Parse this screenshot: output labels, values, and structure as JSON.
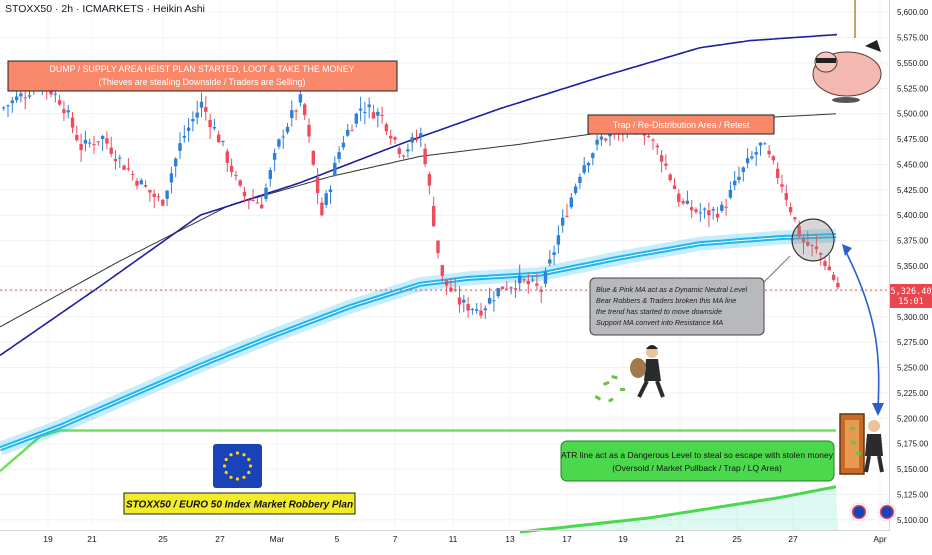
{
  "header": {
    "symbol_line": "STOXX50 · 2h · ICMARKETS · Heikin Ashi"
  },
  "colors": {
    "bull": "#2e7fd6",
    "bear": "#ef4b5c",
    "slow_ma": "#1e1e9e",
    "fast_ma": "#333333",
    "neutral_band": "#1fb6f0",
    "atr_line": "#6ee05a",
    "price_tag": "#e8474f",
    "annotation_orange": "#f9886a",
    "annotation_green": "#4cd84c",
    "annotation_gray": "#b7b9bd"
  },
  "annotations": {
    "dump_title": "DUMP / SUPPLY AREA HEIST PLAN STARTED, LOOT & TAKE THE MONEY",
    "dump_subtitle": "(Thieves are stealing Downside / Traders are Selling)",
    "trap_label": "Trap / Re-Distribution Area / Retest",
    "ma_note": [
      "Blue & Pink MA act as a Dynamic Neutral Level",
      "Bear Robbers & Traders broken this MA line",
      "the trend has started to move downside",
      "Support MA convert into Resistance MA"
    ],
    "atr_note_line1": "ATR line act as a Dangerous Level to steal so escape with stolen money",
    "atr_note_line2": "(Oversold / Market Pullback / Trap / LQ Area)",
    "plan_label": "STOXX50 / EURO 50 Index Market Robbery Plan"
  },
  "price_tag": {
    "price": "5,326.40",
    "countdown": "15:01"
  },
  "chart_data": {
    "type": "candlestick",
    "style": "Heikin Ashi",
    "symbol": "STOXX50",
    "interval": "2h",
    "exchange": "ICMARKETS",
    "y_axis": {
      "side": "right",
      "range": [
        5090,
        5612
      ],
      "ticks": [
        5600,
        5575,
        5550,
        5525,
        5500,
        5475,
        5450,
        5425,
        5400,
        5375,
        5350,
        5325,
        5300,
        5275,
        5250,
        5225,
        5200,
        5175,
        5150,
        5125,
        5100
      ],
      "tick_labels": [
        "5,600.00",
        "5,575.00",
        "5,550.00",
        "5,525.00",
        "5,500.00",
        "5,475.00",
        "5,450.00",
        "5,425.00",
        "5,400.00",
        "5,375.00",
        "5,350.00",
        "5,325.00",
        "5,300.00",
        "5,275.00",
        "5,250.00",
        "5,225.00",
        "5,200.00",
        "5,175.00",
        "5,150.00",
        "5,125.00",
        "5,100.00"
      ]
    },
    "x_axis": {
      "ticks": [
        "19",
        "21",
        "25",
        "27",
        "Mar",
        "5",
        "7",
        "11",
        "13",
        "17",
        "19",
        "21",
        "25",
        "27",
        "Apr"
      ]
    },
    "last_price": 5326.4,
    "price_path": [
      [
        0,
        5505
      ],
      [
        20,
        5518
      ],
      [
        40,
        5532
      ],
      [
        60,
        5512
      ],
      [
        80,
        5466
      ],
      [
        100,
        5478
      ],
      [
        120,
        5452
      ],
      [
        140,
        5430
      ],
      [
        160,
        5412
      ],
      [
        180,
        5474
      ],
      [
        200,
        5510
      ],
      [
        220,
        5470
      ],
      [
        240,
        5420
      ],
      [
        260,
        5412
      ],
      [
        280,
        5480
      ],
      [
        300,
        5515
      ],
      [
        320,
        5400
      ],
      [
        340,
        5472
      ],
      [
        360,
        5508
      ],
      [
        380,
        5498
      ],
      [
        400,
        5462
      ],
      [
        420,
        5480
      ],
      [
        440,
        5338
      ],
      [
        460,
        5312
      ],
      [
        480,
        5308
      ],
      [
        500,
        5330
      ],
      [
        520,
        5335
      ],
      [
        540,
        5326
      ],
      [
        560,
        5390
      ],
      [
        580,
        5448
      ],
      [
        600,
        5476
      ],
      [
        620,
        5482
      ],
      [
        640,
        5488
      ],
      [
        660,
        5458
      ],
      [
        680,
        5410
      ],
      [
        700,
        5402
      ],
      [
        720,
        5405
      ],
      [
        740,
        5442
      ],
      [
        760,
        5470
      ],
      [
        780,
        5432
      ],
      [
        800,
        5375
      ],
      [
        820,
        5360
      ],
      [
        838,
        5326
      ]
    ],
    "indicators": [
      {
        "id": "slow-ma",
        "points": [
          [
            0,
            5262
          ],
          [
            100,
            5330
          ],
          [
            200,
            5400
          ],
          [
            300,
            5432
          ],
          [
            400,
            5470
          ],
          [
            500,
            5505
          ],
          [
            600,
            5536
          ],
          [
            700,
            5565
          ],
          [
            750,
            5572
          ],
          [
            838,
            5578
          ]
        ]
      },
      {
        "id": "fast-ma",
        "points": [
          [
            0,
            5290
          ],
          [
            120,
            5355
          ],
          [
            230,
            5410
          ],
          [
            330,
            5438
          ],
          [
            420,
            5458
          ],
          [
            520,
            5470
          ],
          [
            620,
            5484
          ],
          [
            720,
            5494
          ],
          [
            838,
            5500
          ]
        ]
      },
      {
        "id": "neutral-band",
        "points": [
          [
            0,
            5170
          ],
          [
            60,
            5192
          ],
          [
            130,
            5222
          ],
          [
            200,
            5252
          ],
          [
            270,
            5280
          ],
          [
            350,
            5310
          ],
          [
            420,
            5332
          ],
          [
            470,
            5338
          ],
          [
            540,
            5342
          ],
          [
            620,
            5358
          ],
          [
            700,
            5372
          ],
          [
            780,
            5378
          ],
          [
            838,
            5380
          ]
        ]
      },
      {
        "id": "atr-line",
        "points": [
          [
            0,
            5148
          ],
          [
            40,
            5182
          ],
          [
            60,
            5188
          ],
          [
            838,
            5188
          ]
        ]
      },
      {
        "id": "atr-lower",
        "points": [
          [
            520,
            5088
          ],
          [
            650,
            5102
          ],
          [
            780,
            5122
          ],
          [
            838,
            5133
          ]
        ]
      }
    ]
  }
}
